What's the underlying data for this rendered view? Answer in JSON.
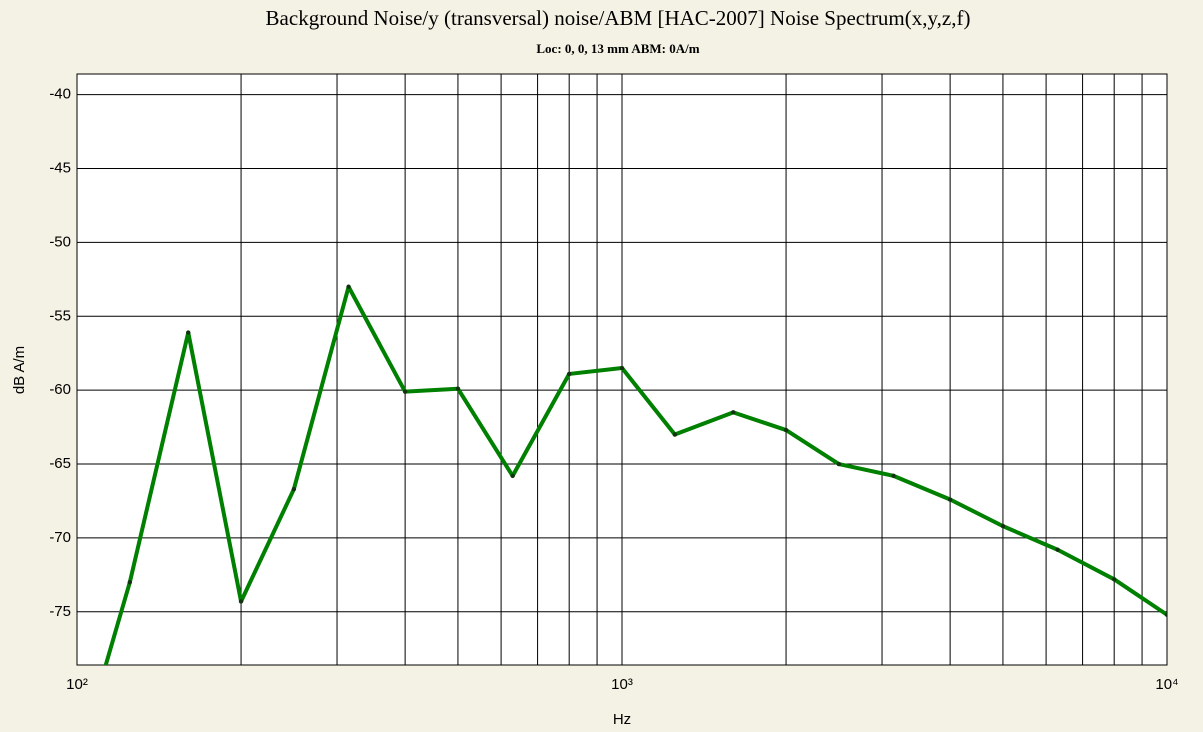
{
  "chart_data": {
    "type": "line",
    "title": "Background Noise/y (transversal) noise/ABM [HAC-2007] Noise Spectrum(x,y,z,f)",
    "subtitle": "Loc: 0, 0, 13 mm ABM: 0A/m",
    "xlabel": "Hz",
    "ylabel": "dB A/m",
    "xscale": "log",
    "x": [
      100,
      125,
      160,
      200,
      250,
      315,
      400,
      500,
      630,
      800,
      1000,
      1250,
      1600,
      2000,
      2500,
      3150,
      4000,
      5000,
      6300,
      8000,
      10000
    ],
    "series": [
      {
        "name": "y",
        "color": "#008000",
        "values": [
          -85.3,
          -73.0,
          -56.1,
          -74.3,
          -66.7,
          -53.0,
          -60.1,
          -59.9,
          -65.8,
          -58.9,
          -58.5,
          -63.0,
          -61.5,
          -62.7,
          -65.0,
          -65.8,
          -67.4,
          -69.2,
          -70.8,
          -72.8,
          -75.2
        ]
      }
    ],
    "xlim": [
      100,
      10000
    ],
    "xticks": [
      {
        "value": 100,
        "label": "10²"
      },
      {
        "value": 1000,
        "label": "10³"
      },
      {
        "value": 10000,
        "label": "10⁴"
      }
    ],
    "xminor": [
      200,
      300,
      400,
      500,
      600,
      700,
      800,
      900,
      2000,
      3000,
      4000,
      5000,
      6000,
      7000,
      8000,
      9000
    ],
    "ylim": [
      -78.6,
      -38.6
    ],
    "yticks": [
      -40,
      -45,
      -50,
      -55,
      -60,
      -65,
      -70,
      -75
    ],
    "grid": true
  }
}
